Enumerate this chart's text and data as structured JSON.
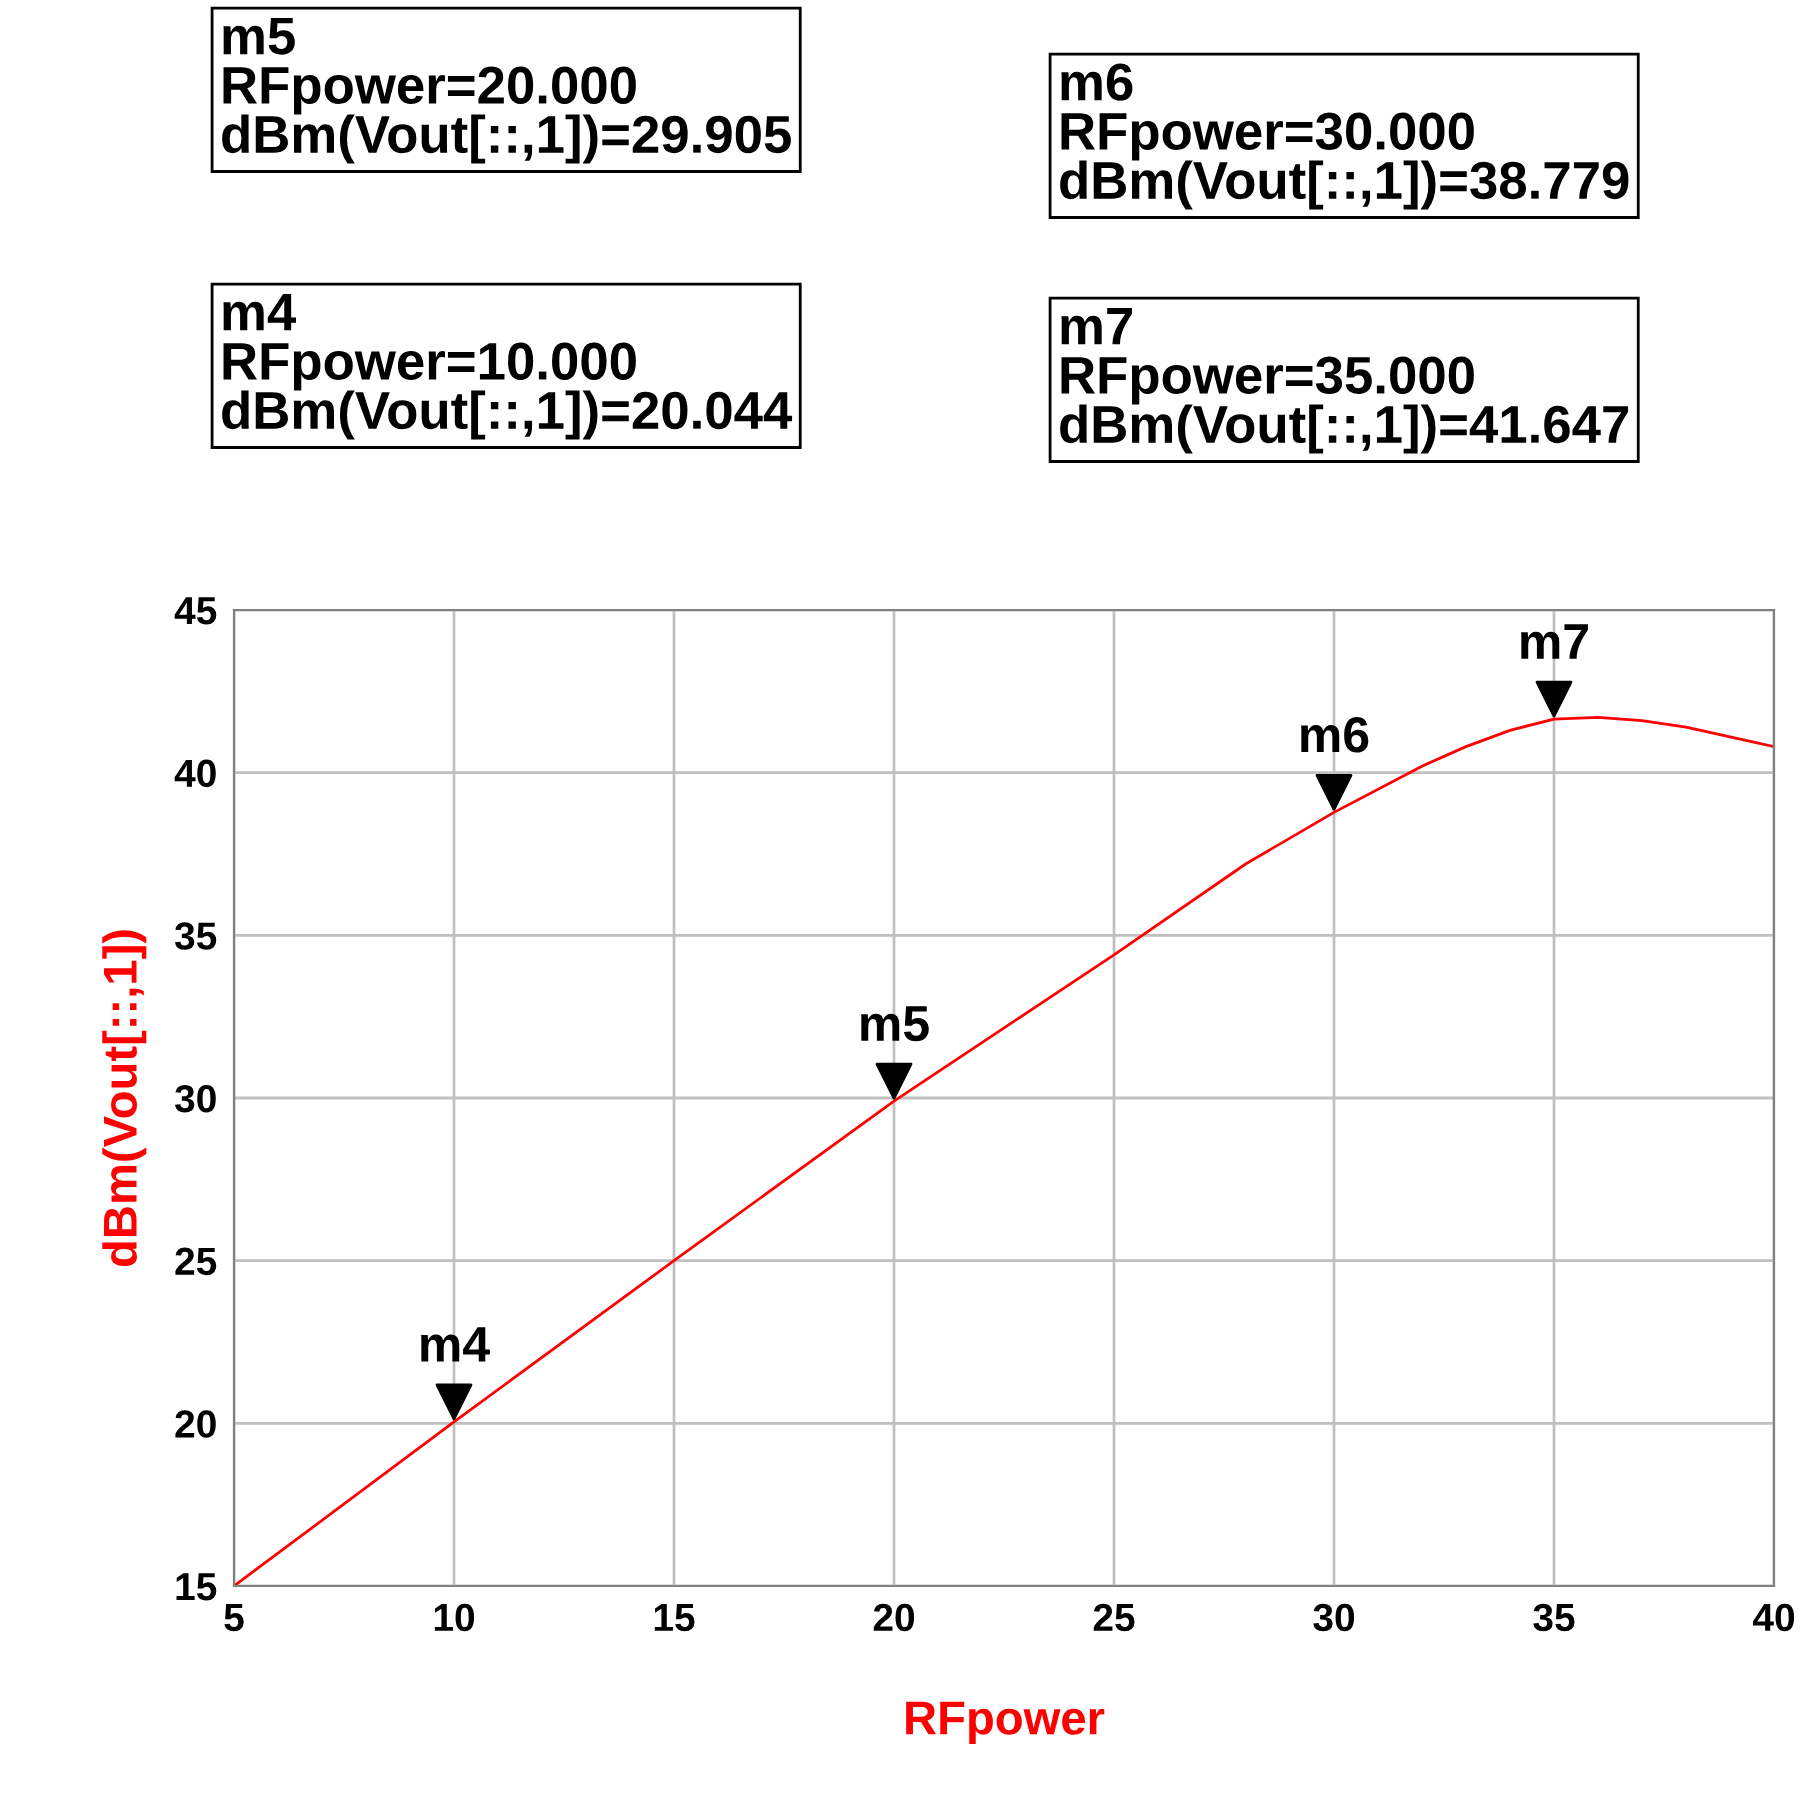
{
  "chart_data": {
    "type": "line",
    "xlabel": "RFpower",
    "ylabel": "dBm(Vout[::,1])",
    "x": [
      5,
      10,
      15,
      20,
      25,
      28,
      30,
      32,
      33,
      34,
      35,
      36,
      37,
      38,
      39,
      40
    ],
    "series": [
      {
        "color": "#ff0000",
        "values": [
          15,
          20.044,
          25,
          29.905,
          34.4,
          37.2,
          38.779,
          40.2,
          40.8,
          41.3,
          41.647,
          41.7,
          41.6,
          41.4,
          41.1,
          40.8
        ]
      }
    ],
    "xlim": [
      5,
      40
    ],
    "xticks": [
      5,
      10,
      15,
      20,
      25,
      30,
      35,
      40
    ],
    "ylim": [
      15,
      45
    ],
    "yticks": [
      15,
      20,
      25,
      30,
      35,
      40,
      45
    ],
    "grid": true,
    "marker": "none",
    "line_style": "solid",
    "annotations": [
      "m5\nRFpower=20.000\ndBm(Vout[::,1])=29.905",
      "m6\nRFpower=30.000\ndBm(Vout[::,1])=38.779",
      "m4\nRFpower=10.000\ndBm(Vout[::,1])=20.044",
      "m7\nRFpower=35.000\ndBm(Vout[::,1])=41.647",
      {
        "text": "m4",
        "x": 10,
        "y": 20.044
      },
      {
        "text": "m5",
        "x": 20,
        "y": 29.905
      },
      {
        "text": "m6",
        "x": 30,
        "y": 38.779
      },
      {
        "text": "m7",
        "x": 35,
        "y": 41.647
      }
    ]
  }
}
